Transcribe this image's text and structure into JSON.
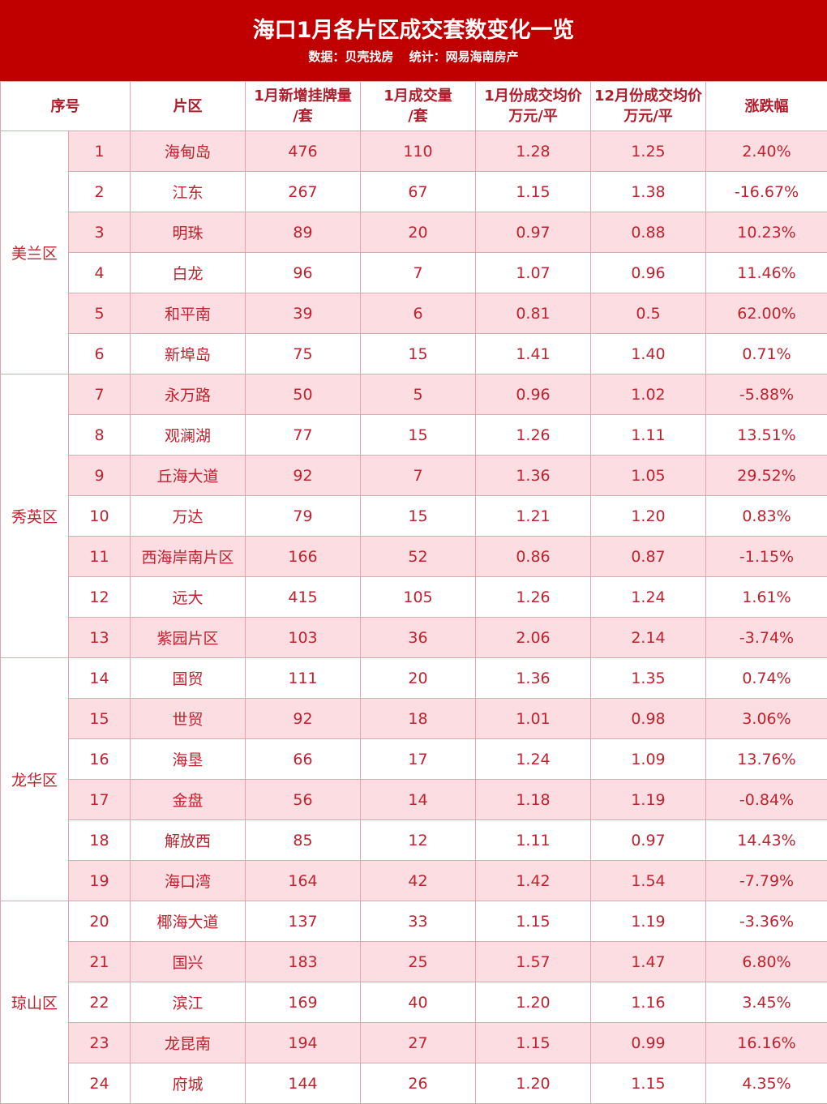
{
  "header": {
    "title": "海口1月各片区成交套数变化一览",
    "source": "数据：贝壳找房",
    "stats": "统计：网易海南房产"
  },
  "columns": [
    [
      "序号"
    ],
    [
      "片区"
    ],
    [
      "1月新增挂牌量",
      "/套"
    ],
    [
      "1月成交量",
      "/套"
    ],
    [
      "1月份成交均价",
      "万元/平"
    ],
    [
      "12月份成交均价",
      "万元/平"
    ],
    [
      "涨跌幅"
    ]
  ],
  "districts": [
    {
      "name": "美兰区",
      "rows": 6
    },
    {
      "name": "秀英区",
      "rows": 7
    },
    {
      "name": "龙华区",
      "rows": 6
    },
    {
      "name": "琼山区",
      "rows": 5
    }
  ],
  "rows": [
    [
      "1",
      "海甸岛",
      "476",
      "110",
      "1.28",
      "1.25",
      "2.40%"
    ],
    [
      "2",
      "江东",
      "267",
      "67",
      "1.15",
      "1.38",
      "-16.67%"
    ],
    [
      "3",
      "明珠",
      "89",
      "20",
      "0.97",
      "0.88",
      "10.23%"
    ],
    [
      "4",
      "白龙",
      "96",
      "7",
      "1.07",
      "0.96",
      "11.46%"
    ],
    [
      "5",
      "和平南",
      "39",
      "6",
      "0.81",
      "0.5",
      "62.00%"
    ],
    [
      "6",
      "新埠岛",
      "75",
      "15",
      "1.41",
      "1.40",
      "0.71%"
    ],
    [
      "7",
      "永万路",
      "50",
      "5",
      "0.96",
      "1.02",
      "-5.88%"
    ],
    [
      "8",
      "观澜湖",
      "77",
      "15",
      "1.26",
      "1.11",
      "13.51%"
    ],
    [
      "9",
      "丘海大道",
      "92",
      "7",
      "1.36",
      "1.05",
      "29.52%"
    ],
    [
      "10",
      "万达",
      "79",
      "15",
      "1.21",
      "1.20",
      "0.83%"
    ],
    [
      "11",
      "西海岸南片区",
      "166",
      "52",
      "0.86",
      "0.87",
      "-1.15%"
    ],
    [
      "12",
      "远大",
      "415",
      "105",
      "1.26",
      "1.24",
      "1.61%"
    ],
    [
      "13",
      "紫园片区",
      "103",
      "36",
      "2.06",
      "2.14",
      "-3.74%"
    ],
    [
      "14",
      "国贸",
      "111",
      "20",
      "1.36",
      "1.35",
      "0.74%"
    ],
    [
      "15",
      "世贸",
      "92",
      "18",
      "1.01",
      "0.98",
      "3.06%"
    ],
    [
      "16",
      "海垦",
      "66",
      "17",
      "1.24",
      "1.09",
      "13.76%"
    ],
    [
      "17",
      "金盘",
      "56",
      "14",
      "1.18",
      "1.19",
      "-0.84%"
    ],
    [
      "18",
      "解放西",
      "85",
      "12",
      "1.11",
      "0.97",
      "14.43%"
    ],
    [
      "19",
      "海口湾",
      "164",
      "42",
      "1.42",
      "1.54",
      "-7.79%"
    ],
    [
      "20",
      "椰海大道",
      "137",
      "33",
      "1.15",
      "1.19",
      "-3.36%"
    ],
    [
      "21",
      "国兴",
      "183",
      "25",
      "1.57",
      "1.47",
      "6.80%"
    ],
    [
      "22",
      "滨江",
      "169",
      "40",
      "1.20",
      "1.16",
      "3.45%"
    ],
    [
      "23",
      "龙昆南",
      "194",
      "27",
      "1.15",
      "0.99",
      "16.16%"
    ],
    [
      "24",
      "府城",
      "144",
      "26",
      "1.20",
      "1.15",
      "4.35%"
    ]
  ],
  "colors": {
    "header_bg": "#c00000",
    "stripe": "#fcdde2",
    "text": "#c0222e",
    "border": "#e8a3ae"
  }
}
